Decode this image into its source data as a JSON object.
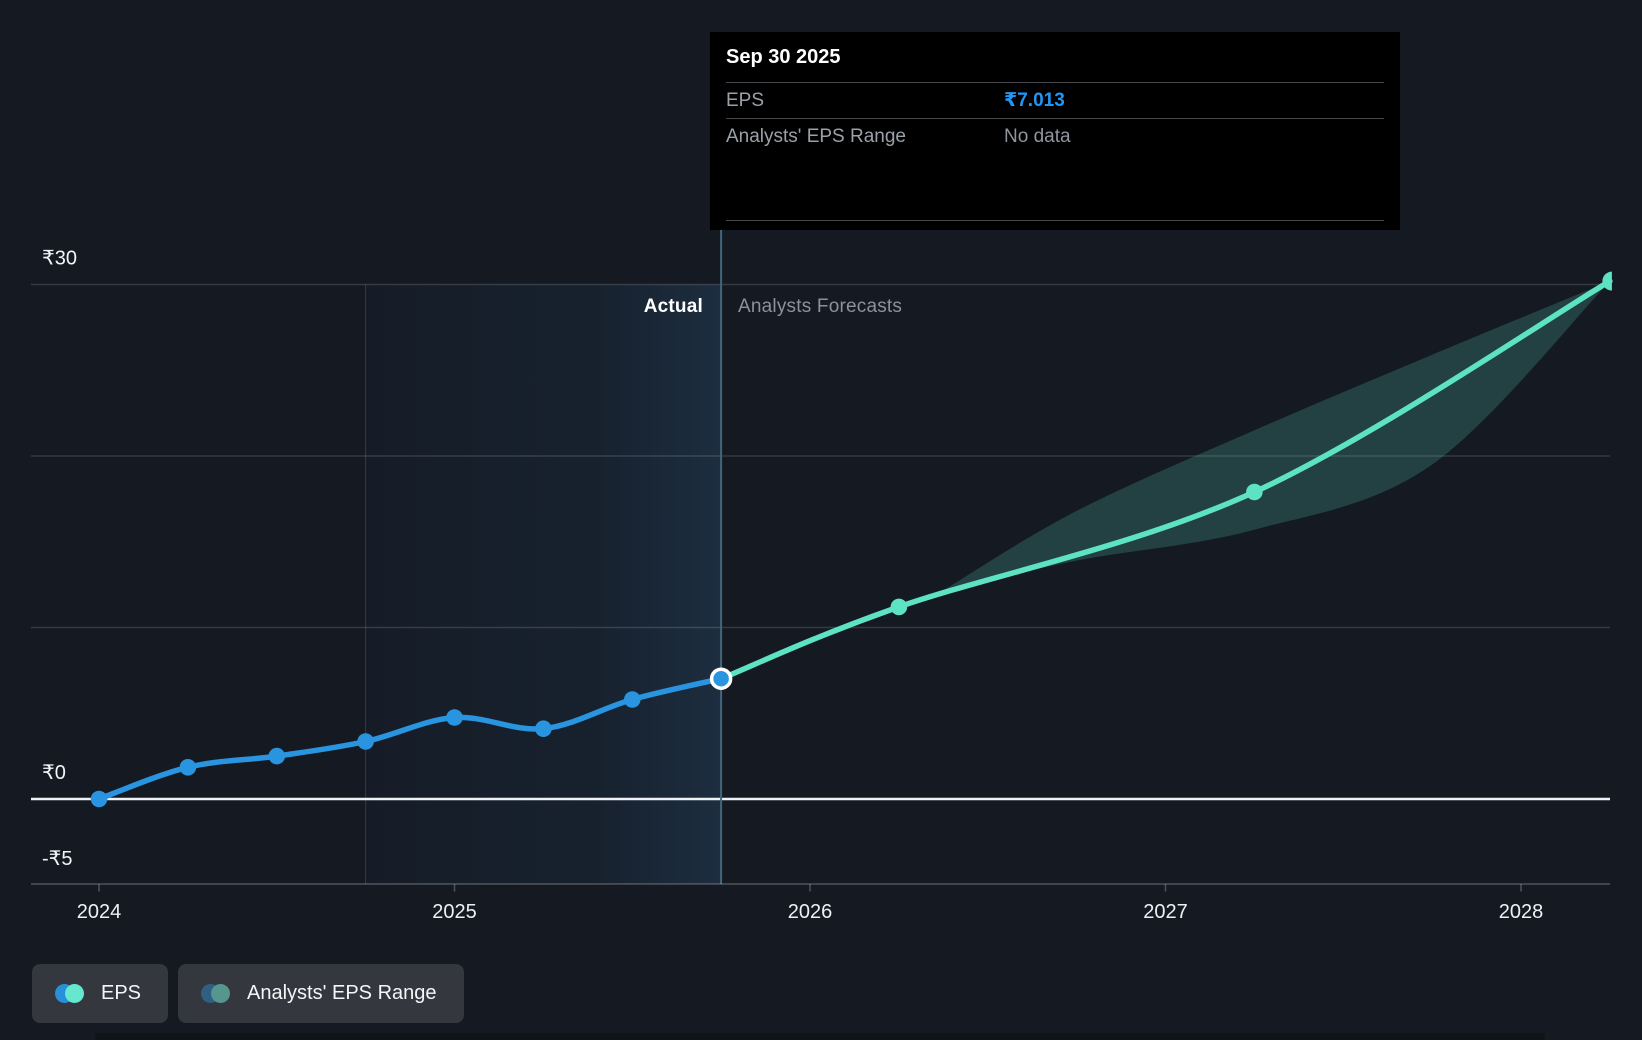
{
  "colors": {
    "background": "#141922",
    "actual_line": "#2994df",
    "forecast_line": "#5de3c3",
    "range_band_fill": "rgba(93,227,195,0.20)",
    "gridline": "rgba(255,255,255,0.14)",
    "zero_line": "#eef2f5",
    "axis_line": "rgba(255,255,255,0.25)",
    "divider_line": "#44657a",
    "highlight_from": "rgba(60,130,190,0.03)",
    "highlight_to": "rgba(70,140,200,0.18)",
    "highlight_edge": "rgba(140,180,215,0.22)",
    "x_label_color": "#eef1f4",
    "y_label_color": "#f2f5f7",
    "tooltip_value_blue": "#2196f3",
    "current_dot_ring": "#ffffff"
  },
  "tooltip": {
    "date": "Sep 30 2025",
    "rows": [
      {
        "label": "EPS",
        "value": "₹7.013"
      },
      {
        "label": "Analysts' EPS Range",
        "value": "No data"
      }
    ]
  },
  "chart_data": {
    "type": "line",
    "title": "EPS actual vs analysts forecast",
    "currency": "₹",
    "y_axis": {
      "tick_labels": [
        "₹30",
        "₹0",
        "-₹5"
      ],
      "tick_values": [
        30,
        0,
        -5
      ],
      "gridline_values": [
        30,
        20,
        10
      ],
      "zero_line_value": 0,
      "ylim": [
        -4.95,
        33.5
      ],
      "grid": true
    },
    "x_axis": {
      "tick_labels": [
        "2024",
        "2025",
        "2026",
        "2027",
        "2028"
      ],
      "tick_values": [
        2024,
        2025,
        2026,
        2027,
        2028
      ],
      "xlim": [
        2023.81,
        2028.25
      ]
    },
    "divider": {
      "t": 2025.75,
      "left_label": "Actual",
      "right_label": "Analysts Forecasts"
    },
    "highlight_band": {
      "from": 2024.75,
      "to": 2025.75
    },
    "series": [
      {
        "name": "EPS",
        "kind": "actual",
        "color": "#2994df",
        "points": [
          {
            "t": 2024.0,
            "date": "Dec 31 2023",
            "v": 0.0
          },
          {
            "t": 2024.25,
            "date": "Mar 31 2024",
            "v": 1.85
          },
          {
            "t": 2024.5,
            "date": "Jun 30 2024",
            "v": 2.5
          },
          {
            "t": 2024.75,
            "date": "Sep 30 2024",
            "v": 3.35
          },
          {
            "t": 2025.0,
            "date": "Dec 31 2024",
            "v": 4.75
          },
          {
            "t": 2025.25,
            "date": "Mar 31 2025",
            "v": 4.1
          },
          {
            "t": 2025.5,
            "date": "Jun 30 2025",
            "v": 5.8
          },
          {
            "t": 2025.75,
            "date": "Sep 30 2025",
            "v": 7.013
          }
        ],
        "current_point_index": 7
      },
      {
        "name": "EPS forecast",
        "kind": "forecast",
        "color": "#5de3c3",
        "points": [
          {
            "t": 2025.75,
            "date": "Sep 30 2025",
            "v": 7.013
          },
          {
            "t": 2026.25,
            "date": "Mar 31 2026",
            "v": 11.2
          },
          {
            "t": 2027.25,
            "date": "Mar 31 2027",
            "v": 17.9
          },
          {
            "t": 2028.25,
            "date": "Mar 31 2028",
            "v": 30.2
          }
        ],
        "marker_indices": [
          1,
          2
        ],
        "end_marker_index": 3
      }
    ],
    "range_band": {
      "name": "Analysts' EPS Range",
      "points": [
        {
          "t": 2026.37,
          "low": 12.1,
          "high": 12.1
        },
        {
          "t": 2026.75,
          "low": 13.9,
          "high": 16.8
        },
        {
          "t": 2027.25,
          "low": 15.7,
          "high": 21.5
        },
        {
          "t": 2027.75,
          "low": 19.5,
          "high": 25.9
        },
        {
          "t": 2028.25,
          "low": 30.2,
          "high": 30.2
        }
      ]
    },
    "legend_position": "bottom-left"
  },
  "legend": [
    {
      "label": "EPS",
      "dot_colors": [
        "#2890d8",
        "#65e7d0"
      ]
    },
    {
      "label": "Analysts' EPS Range",
      "dot_colors": [
        "#2f5f81",
        "#55968f"
      ]
    }
  ]
}
